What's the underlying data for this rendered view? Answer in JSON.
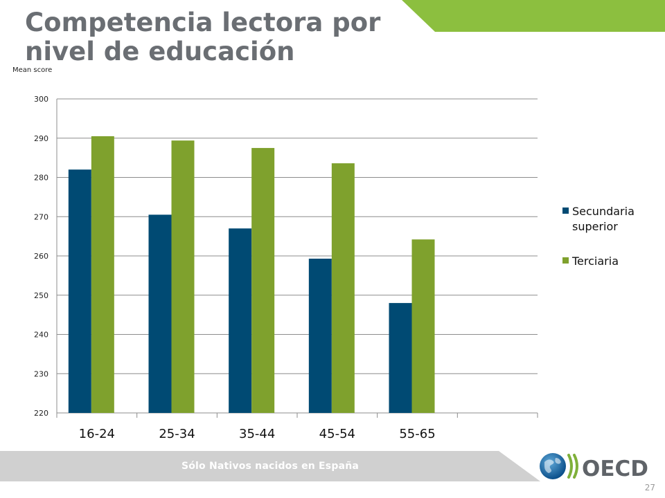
{
  "slide": {
    "title_line1": "Competencia lectora por",
    "title_line2": "nivel de educación",
    "footer": "Sólo Nativos nacidos en España",
    "page_number": "27",
    "logo_text": "OECD"
  },
  "colors": {
    "title": "#6a6e73",
    "accent_green": "#8cbf3f",
    "series1": "#004a73",
    "series2": "#7fa12d",
    "footer_band": "#d0d0d0"
  },
  "chart_data": {
    "type": "bar",
    "title": "",
    "ylabel": "Mean score",
    "xlabel": "",
    "categories": [
      "16-24",
      "25-34",
      "35-44",
      "45-54",
      "55-65",
      ""
    ],
    "series": [
      {
        "name": "Secundaria superior",
        "values": [
          282,
          270.5,
          267,
          259.3,
          248,
          null
        ]
      },
      {
        "name": "Terciaria",
        "values": [
          290.5,
          289.4,
          287.5,
          283.6,
          264.2,
          null
        ]
      }
    ],
    "ylim": [
      220,
      300
    ],
    "yticks": [
      220,
      230,
      240,
      250,
      260,
      270,
      280,
      290,
      300
    ],
    "grid": true,
    "legend_position": "right",
    "legend_labels": [
      [
        "Secundaria",
        "superior"
      ],
      [
        "Terciaria"
      ]
    ]
  }
}
